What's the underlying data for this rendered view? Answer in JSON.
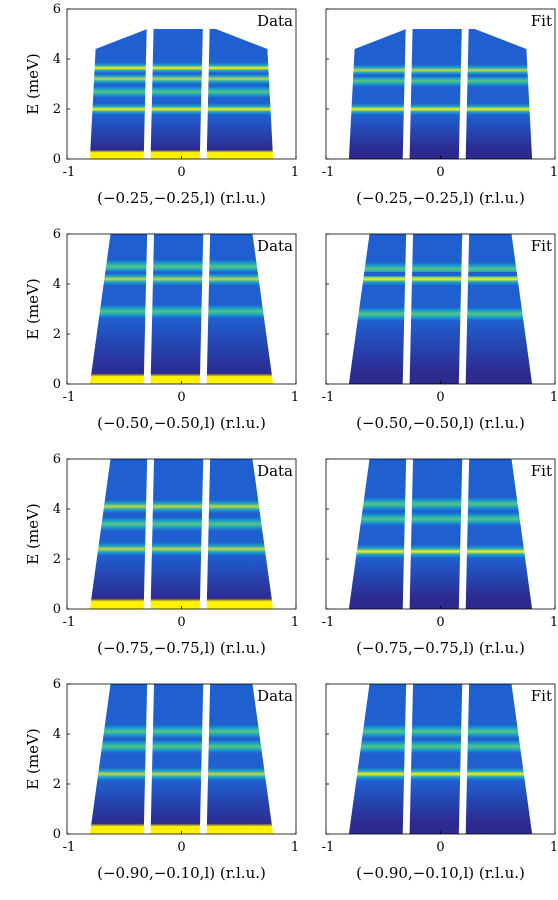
{
  "figure": {
    "ylabel": "E (meV)",
    "data_tag": "Data",
    "fit_tag": "Fit",
    "colormap": [
      "#2c2a8f",
      "#1f5fd0",
      "#18a3c9",
      "#5ac57a",
      "#c9d63a",
      "#fff200"
    ],
    "white_gap_color": "#ffffff"
  },
  "chart_data": [
    {
      "type": "heatmap",
      "panel": "data",
      "row": 0,
      "title_tag": "Data",
      "xlabel": "(−0.25,−0.25,l) (r.l.u.)",
      "ylabel": "E (meV)",
      "xlim": [
        -1,
        1
      ],
      "ylim": [
        0,
        6
      ],
      "xticks": [
        "-1",
        "0",
        "1"
      ],
      "yticks": [
        "0",
        "2",
        "4",
        "6"
      ],
      "bands": [
        [
          2.3,
          1.0
        ],
        [
          3.1,
          0.6
        ],
        [
          3.7,
          0.7
        ],
        [
          4.2,
          0.9
        ]
      ],
      "top_edge": [
        4.4,
        5.2,
        5.2,
        4.4
      ],
      "bottom_bright": true
    },
    {
      "type": "heatmap",
      "panel": "fit",
      "row": 0,
      "title_tag": "Fit",
      "xlabel": "(−0.25,−0.25,l) (r.l.u.)",
      "xlim": [
        -1,
        1
      ],
      "ylim": [
        0,
        6
      ],
      "xticks": [
        "-1",
        "0",
        "1"
      ],
      "bands": [
        [
          2.3,
          1.0
        ],
        [
          3.6,
          0.6
        ],
        [
          4.1,
          0.8
        ]
      ],
      "top_edge": [
        4.4,
        5.2,
        5.2,
        4.4
      ],
      "bottom_bright": false
    },
    {
      "type": "heatmap",
      "panel": "data",
      "row": 1,
      "title_tag": "Data",
      "xlabel": "(−0.50,−0.50,l) (r.l.u.)",
      "ylabel": "E (meV)",
      "xlim": [
        -1,
        1
      ],
      "ylim": [
        0,
        6
      ],
      "xticks": [
        "-1",
        "0",
        "1"
      ],
      "yticks": [
        "0",
        "2",
        "4",
        "6"
      ],
      "bands": [
        [
          2.9,
          0.6
        ],
        [
          4.2,
          0.8
        ],
        [
          4.7,
          0.5
        ]
      ],
      "top_edge": [
        6,
        6,
        6,
        6
      ],
      "bottom_bright": true
    },
    {
      "type": "heatmap",
      "panel": "fit",
      "row": 1,
      "title_tag": "Fit",
      "xlabel": "(−0.50,−0.50,l) (r.l.u.)",
      "xlim": [
        -1,
        1
      ],
      "ylim": [
        0,
        6
      ],
      "xticks": [
        "-1",
        "0",
        "1"
      ],
      "bands": [
        [
          2.8,
          0.6
        ],
        [
          4.2,
          1.0
        ],
        [
          4.6,
          0.5
        ]
      ],
      "top_edge": [
        6,
        6,
        6,
        6
      ],
      "bottom_bright": false
    },
    {
      "type": "heatmap",
      "panel": "data",
      "row": 2,
      "title_tag": "Data",
      "xlabel": "(−0.75,−0.75,l) (r.l.u.)",
      "ylabel": "E (meV)",
      "xlim": [
        -1,
        1
      ],
      "ylim": [
        0,
        6
      ],
      "xticks": [
        "-1",
        "0",
        "1"
      ],
      "yticks": [
        "0",
        "2",
        "4",
        "6"
      ],
      "bands": [
        [
          2.4,
          0.8
        ],
        [
          3.4,
          0.6
        ],
        [
          4.1,
          0.7
        ]
      ],
      "top_edge": [
        6,
        6,
        6,
        6
      ],
      "bottom_bright": true
    },
    {
      "type": "heatmap",
      "panel": "fit",
      "row": 2,
      "title_tag": "Fit",
      "xlabel": "(−0.75,−0.75,l) (r.l.u.)",
      "xlim": [
        -1,
        1
      ],
      "ylim": [
        0,
        6
      ],
      "xticks": [
        "-1",
        "0",
        "1"
      ],
      "bands": [
        [
          2.3,
          0.9
        ],
        [
          3.6,
          0.5
        ],
        [
          4.2,
          0.6
        ]
      ],
      "top_edge": [
        6,
        6,
        6,
        6
      ],
      "bottom_bright": false
    },
    {
      "type": "heatmap",
      "panel": "data",
      "row": 3,
      "title_tag": "Data",
      "xlabel": "(−0.90,−0.10,l) (r.l.u.)",
      "ylabel": "E (meV)",
      "xlim": [
        -1,
        1
      ],
      "ylim": [
        0,
        6
      ],
      "xticks": [
        "-1",
        "0",
        "1"
      ],
      "yticks": [
        "0",
        "2",
        "4",
        "6"
      ],
      "bands": [
        [
          2.4,
          0.8
        ],
        [
          3.5,
          0.6
        ],
        [
          4.1,
          0.6
        ]
      ],
      "top_edge": [
        6,
        6,
        6,
        6
      ],
      "bottom_bright": true
    },
    {
      "type": "heatmap",
      "panel": "fit",
      "row": 3,
      "title_tag": "Fit",
      "xlabel": "(−0.90,−0.10,l) (r.l.u.)",
      "xlim": [
        -1,
        1
      ],
      "ylim": [
        0,
        6
      ],
      "xticks": [
        "-1",
        "0",
        "1"
      ],
      "bands": [
        [
          2.4,
          0.9
        ],
        [
          3.5,
          0.5
        ],
        [
          4.1,
          0.6
        ]
      ],
      "top_edge": [
        6,
        6,
        6,
        6
      ],
      "bottom_bright": false
    }
  ]
}
